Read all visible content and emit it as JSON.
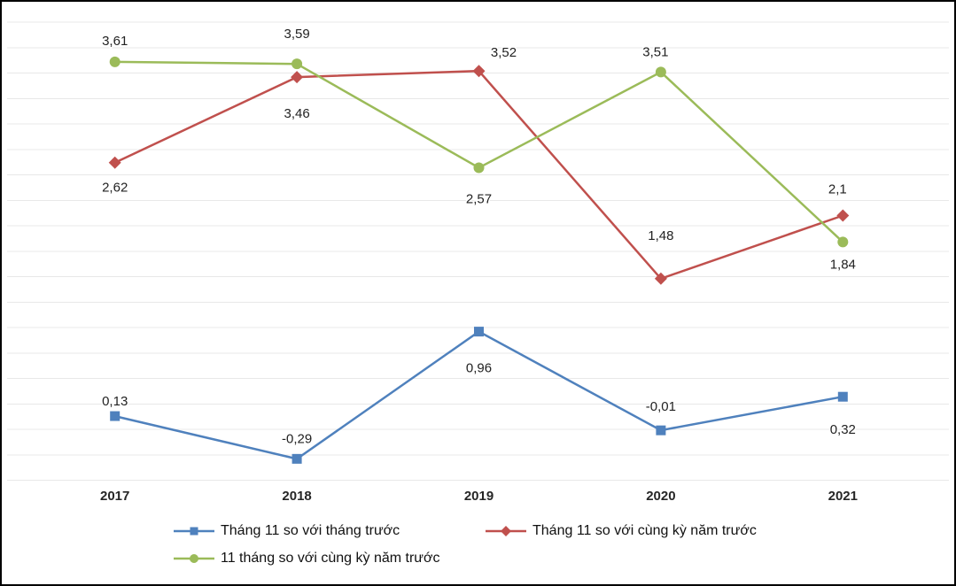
{
  "colors": {
    "background": "#ffffff",
    "frame_border": "#000000",
    "gridline": "#e8e8e8",
    "data_label_text": "#222222",
    "axis_label_text": "#262626"
  },
  "chart_data": {
    "type": "line",
    "title": "",
    "xlabel": "",
    "ylabel": "",
    "categories": [
      "2017",
      "2018",
      "2019",
      "2020",
      "2021"
    ],
    "ylim": [
      -0.5,
      4.0
    ],
    "gridline_step": 0.25,
    "grid": true,
    "legend_position": "bottom",
    "series": [
      {
        "name": "Tháng 11 so với tháng trước",
        "color": "#4F81BD",
        "marker": "square",
        "values": [
          0.13,
          -0.29,
          0.96,
          -0.01,
          0.32
        ],
        "labels": [
          "0,13",
          "-0,29",
          "0,96",
          "-0,01",
          "0,32"
        ],
        "label_offsets": [
          [
            0,
            -12
          ],
          [
            0,
            -18
          ],
          [
            0,
            46
          ],
          [
            0,
            -22
          ],
          [
            0,
            42
          ]
        ]
      },
      {
        "name": "Tháng 11 so với cùng kỳ năm trước",
        "color": "#C0504D",
        "marker": "diamond",
        "values": [
          2.62,
          3.46,
          3.52,
          1.48,
          2.1
        ],
        "labels": [
          "2,62",
          "3,46",
          "3,52",
          "1,48",
          "2,1"
        ],
        "label_offsets": [
          [
            0,
            33
          ],
          [
            0,
            46
          ],
          [
            28,
            -16
          ],
          [
            0,
            -44
          ],
          [
            -6,
            -25
          ]
        ]
      },
      {
        "name": "11 tháng so với cùng kỳ năm trước",
        "color": "#9BBB59",
        "marker": "circle",
        "values": [
          3.61,
          3.59,
          2.57,
          3.51,
          1.84
        ],
        "labels": [
          "3,61",
          "3,59",
          "2,57",
          "3,51",
          "1,84"
        ],
        "label_offsets": [
          [
            0,
            -19
          ],
          [
            0,
            -29
          ],
          [
            0,
            40
          ],
          [
            -6,
            -18
          ],
          [
            0,
            30
          ]
        ]
      }
    ]
  }
}
